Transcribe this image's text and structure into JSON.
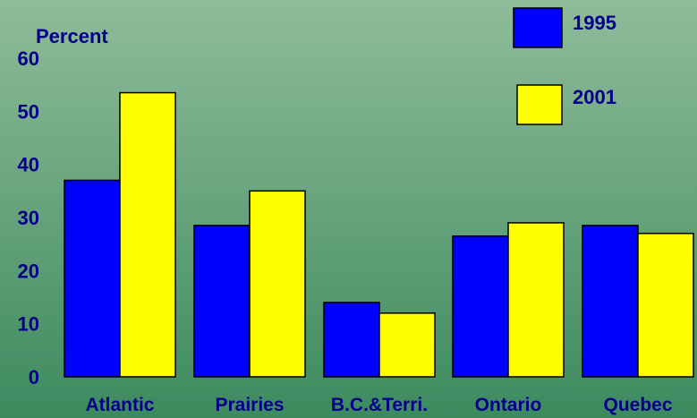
{
  "colors": {
    "background_top": "#8fbc9a",
    "background_bottom": "#3d8a5f",
    "text": "#00008b",
    "bar_outline": "#000000"
  },
  "chart_data": {
    "type": "bar",
    "ylabel": "Percent",
    "ylim": [
      0,
      60
    ],
    "yticks": [
      0,
      10,
      20,
      30,
      40,
      50,
      60
    ],
    "grid": false,
    "legend_position": "top-right",
    "categories": [
      "Atlantic",
      "Prairies",
      "B.C.&Terri.",
      "Ontario",
      "Quebec"
    ],
    "series": [
      {
        "name": "1995",
        "color": "#0000ff",
        "values": [
          37,
          28.5,
          14,
          26.5,
          28.5
        ]
      },
      {
        "name": "2001",
        "color": "#ffff00",
        "values": [
          53.5,
          35,
          12,
          29,
          27
        ]
      }
    ]
  }
}
